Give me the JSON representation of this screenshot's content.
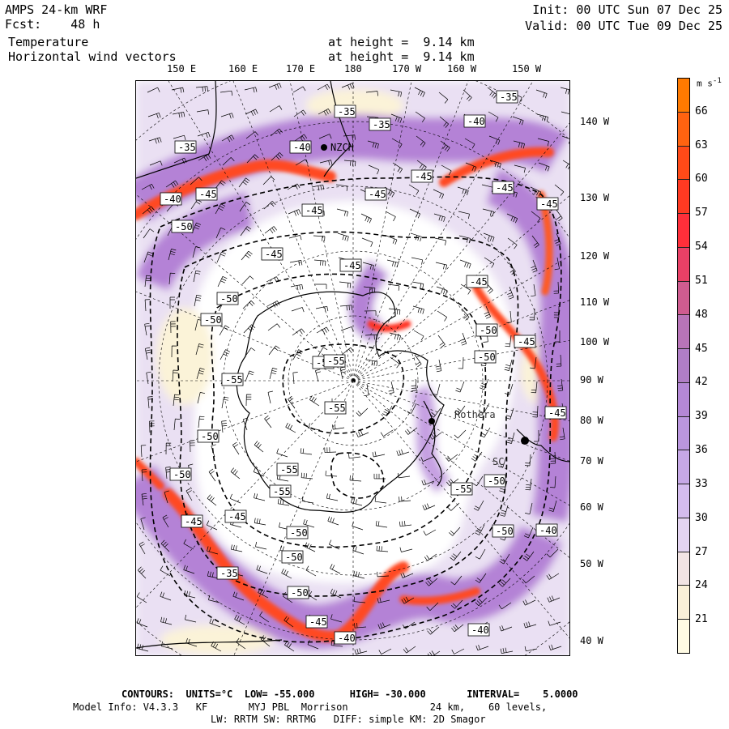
{
  "header": {
    "model": "AMPS 24-km WRF",
    "fcst_label": "Fcst:",
    "fcst_value": "48 h",
    "field1": "Temperature",
    "field2": "Horizontal wind vectors",
    "height1": "at height =  9.14 km",
    "height2": "at height =  9.14 km",
    "init": "Init: 00 UTC Sun 07 Dec 25",
    "valid": "Valid: 00 UTC Tue 09 Dec 25"
  },
  "longitude_top": [
    "150 E",
    "160 E",
    "170 E",
    "180",
    "170 W",
    "160 W",
    "150 W"
  ],
  "longitude_right": [
    "140 W",
    "130 W",
    "120 W",
    "110 W",
    "100 W",
    "90 W",
    "80 W",
    "70 W",
    "60 W",
    "50 W",
    "40 W"
  ],
  "stations": [
    "NZCH",
    "Rothera",
    "SC"
  ],
  "contour_labels": [
    "-35",
    "-35",
    "-35",
    "-35",
    "-40",
    "-40",
    "-40",
    "-40",
    "-40",
    "-45",
    "-45",
    "-45",
    "-45",
    "-45",
    "-45",
    "-45",
    "-45",
    "-45",
    "-45",
    "-45",
    "-45",
    "-45",
    "-45",
    "-50",
    "-50",
    "-50",
    "-50",
    "-50",
    "-50",
    "-50",
    "-50",
    "-50",
    "-50",
    "-50",
    "-50",
    "-55",
    "-55",
    "-55",
    "-55",
    "-55",
    "-55",
    "-35",
    "-40",
    "-50"
  ],
  "colorbar": {
    "units": "m s",
    "units_exp": "-1",
    "ticks": [
      "66",
      "63",
      "60",
      "57",
      "54",
      "51",
      "48",
      "45",
      "42",
      "39",
      "36",
      "33",
      "30",
      "27",
      "24",
      "21"
    ],
    "colors": [
      "#ff7a00",
      "#ff6310",
      "#ff4a18",
      "#ff3a22",
      "#ff2f3a",
      "#e94066",
      "#cf5c90",
      "#b874b8",
      "#b07ec6",
      "#b488d6",
      "#ba96de",
      "#c6a8e6",
      "#d4bcee",
      "#e4d4f2",
      "#f2e4e4",
      "#faf0d8",
      "#fffbe4"
    ]
  },
  "footer": {
    "line1": "CONTOURS:  UNITS=°C  LOW= -55.000      HIGH= -30.000       INTERVAL=    5.0000",
    "line2": "Model Info: V4.3.3   KF       MYJ PBL  Morrison              24 km,    60 levels,",
    "line3": "LW: RRTM SW: RRTMG   DIFF: simple KM: 2D Smagor"
  }
}
